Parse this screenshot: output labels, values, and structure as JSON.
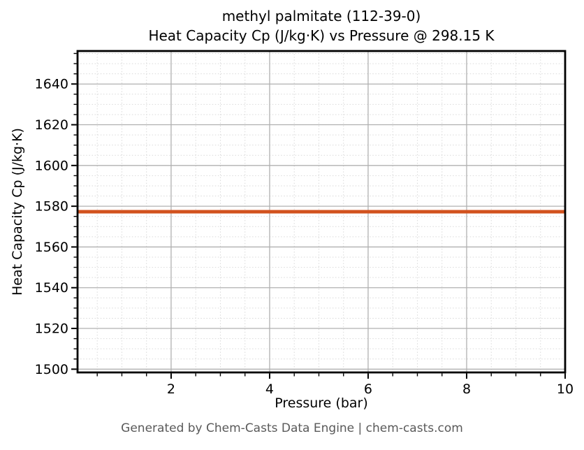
{
  "header": {
    "title_line1": "methyl palmitate (112-39-0)",
    "title_line2": "Heat Capacity Cp (J/kg·K) vs Pressure @ 298.15 K"
  },
  "footer": {
    "credit": "Generated by Chem-Casts Data Engine | chem-casts.com"
  },
  "chart_data": {
    "type": "line",
    "title": "methyl palmitate (112-39-0)",
    "subtitle": "Heat Capacity Cp (J/kg·K) vs Pressure @ 298.15 K",
    "xlabel": "Pressure (bar)",
    "ylabel": "Heat Capacity Cp (J/kg·K)",
    "series": [
      {
        "name": "Heat Capacity Cp",
        "shape": "constant horizontal line",
        "x": [
          0.1,
          10.0
        ],
        "y": [
          1577.3,
          1577.3
        ],
        "color": "#d2521e",
        "linewidth": 5
      }
    ],
    "xlim": [
      0.1,
      10.0
    ],
    "ylim": [
      1498.4,
      1656.2
    ],
    "xticks": [
      2,
      4,
      6,
      8,
      10
    ],
    "yticks": [
      1500,
      1520,
      1540,
      1560,
      1580,
      1600,
      1620,
      1640
    ],
    "minor_xtick_step": 0.5,
    "minor_ytick_step": 5,
    "grid": {
      "major": true,
      "minor": true,
      "major_color": "#b0b0b0",
      "minor_color": "#d9d9d9",
      "minor_style": "dotted"
    },
    "legend": "none",
    "colors": {
      "spine": "#000000",
      "tick_text": "#000000",
      "footer_text": "#595959",
      "background": "#ffffff"
    }
  }
}
